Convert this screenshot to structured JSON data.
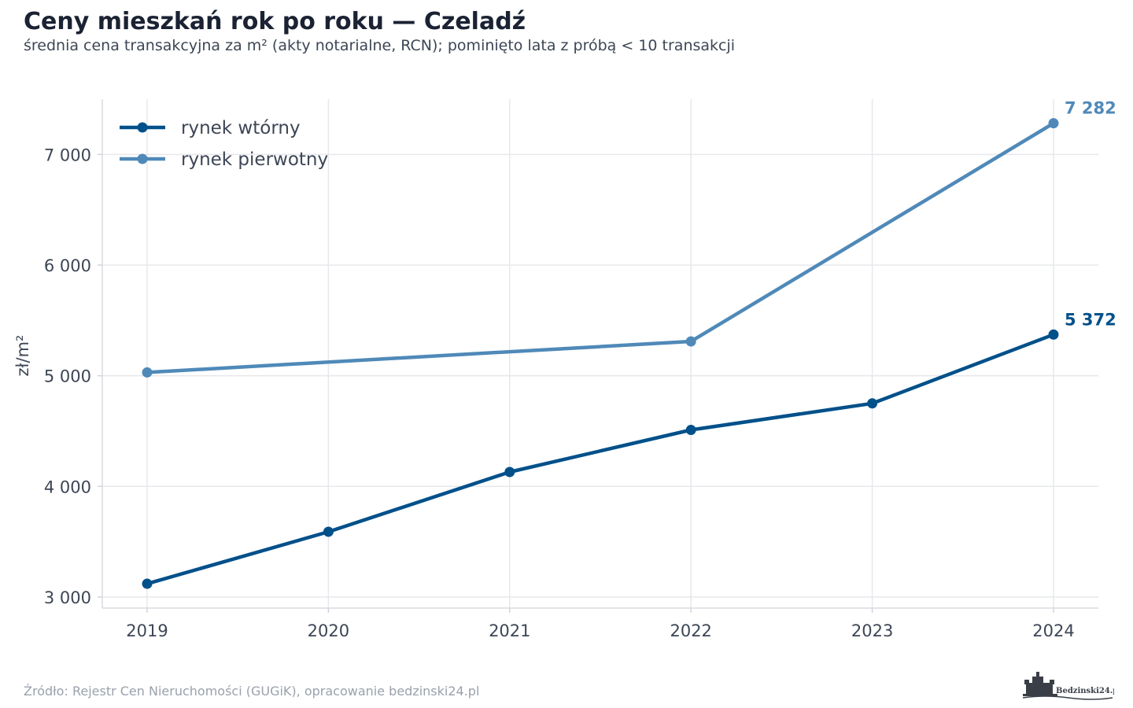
{
  "chart_data": {
    "type": "line",
    "title": "Ceny mieszkań rok po roku — Czeladź",
    "subtitle": "średnia cena transakcyjna za m² (akty notarialne, RCN); pominięto lata z próbą < 10 transakcji",
    "ylabel": "zł/m²",
    "xlabel": "",
    "x": [
      2019,
      2020,
      2021,
      2022,
      2023,
      2024
    ],
    "x_tick_labels": [
      "2019",
      "2020",
      "2021",
      "2022",
      "2023",
      "2024"
    ],
    "ylim": [
      2900,
      7500
    ],
    "y_ticks": [
      3000,
      4000,
      5000,
      6000,
      7000
    ],
    "y_tick_labels": [
      "3 000",
      "4 000",
      "5 000",
      "6 000",
      "7 000"
    ],
    "grid": true,
    "legend_position": "top-left",
    "series": [
      {
        "name": "rynek wtórny",
        "color": "#00508a",
        "x": [
          2019,
          2020,
          2021,
          2022,
          2023,
          2024
        ],
        "values": [
          3120,
          3590,
          4130,
          4510,
          4750,
          5372
        ],
        "end_label": "5 372"
      },
      {
        "name": "rynek pierwotny",
        "color": "#4f89b8",
        "x": [
          2019,
          2022,
          2024
        ],
        "values": [
          5030,
          5310,
          7282
        ],
        "end_label": "7 282"
      }
    ]
  },
  "footer": {
    "source": "Źródło: Rejestr Cen Nieruchomości (GUGiK), opracowanie bedzinski24.pl"
  },
  "logo": {
    "text": "Bedzinski24.pl",
    "icon": "castle-icon"
  }
}
